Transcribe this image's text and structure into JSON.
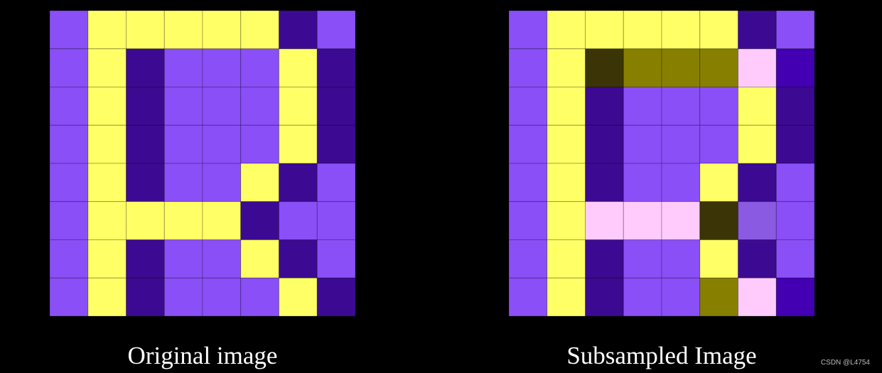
{
  "palette": {
    "P": "#8a4ff7",
    "Y": "#ffff66",
    "D": "#3c0a92",
    "K": "#3b3406",
    "O": "#877f00",
    "W": "#ffcbfd",
    "B": "#4300b2",
    "M": "#8b5ae3"
  },
  "panels": [
    {
      "caption": "Original image",
      "rows": [
        "PYYYYYDP",
        "PYDPPPYD",
        "PYDPPPYD",
        "PYDPPPYD",
        "PYDPPYDP",
        "PYYYYDPP",
        "PYDPPYDP",
        "PYDPPPYD"
      ]
    },
    {
      "caption": "Subsampled Image",
      "rows": [
        "PYYYYYDP",
        "PYKOOOWB",
        "PYDPPPYD",
        "PYDPPPYD",
        "PYDPPYDP",
        "PYWWWKMP",
        "PYDPPYDP",
        "PYDPPOWB"
      ]
    }
  ],
  "watermark": "CSDN @L4754"
}
